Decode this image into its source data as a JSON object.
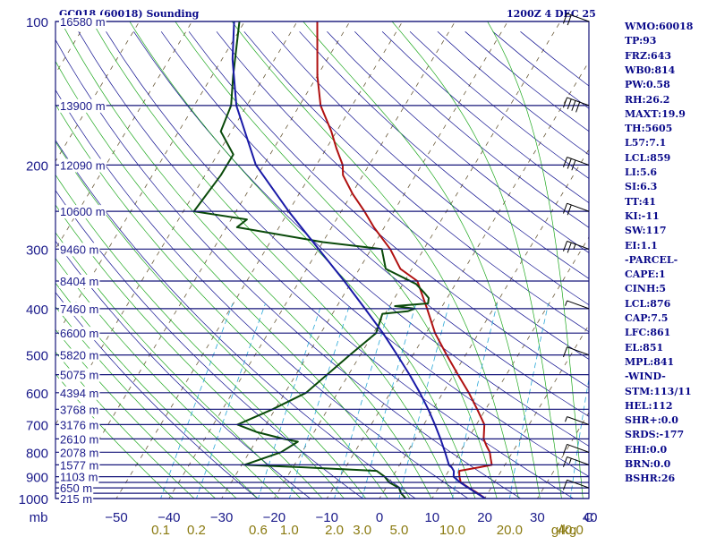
{
  "chart_data": {
    "type": "skew-t sounding",
    "title": "GC018 (60018) Sounding",
    "time_label": "1200Z  4 DEC 25",
    "pressure_axis_unit": "mb",
    "mixing_ratio_unit": "g/kg",
    "pressure_levels": [
      100,
      150,
      200,
      250,
      300,
      350,
      400,
      450,
      500,
      550,
      600,
      650,
      700,
      750,
      800,
      850,
      900,
      925,
      950,
      975,
      1000
    ],
    "pressure_tick_labels": [
      100,
      200,
      300,
      400,
      500,
      600,
      700,
      800,
      900,
      1000
    ],
    "height_labels": [
      {
        "p": 100,
        "label": "16580 m"
      },
      {
        "p": 150,
        "label": "13900 m"
      },
      {
        "p": 200,
        "label": "12090 m"
      },
      {
        "p": 250,
        "label": "10600 m"
      },
      {
        "p": 300,
        "label": "9460 m"
      },
      {
        "p": 350,
        "label": "8404 m"
      },
      {
        "p": 400,
        "label": "7460 m"
      },
      {
        "p": 450,
        "label": "6600 m"
      },
      {
        "p": 500,
        "label": "5820 m"
      },
      {
        "p": 550,
        "label": "5075 m"
      },
      {
        "p": 600,
        "label": "4394 m"
      },
      {
        "p": 650,
        "label": "3768 m"
      },
      {
        "p": 700,
        "label": "3176 m"
      },
      {
        "p": 750,
        "label": "2610 m"
      },
      {
        "p": 800,
        "label": "2078 m"
      },
      {
        "p": 850,
        "label": "1577 m"
      },
      {
        "p": 900,
        "label": "1103 m"
      },
      {
        "p": 950,
        "label": "650 m"
      },
      {
        "p": 1000,
        "label": "215 m"
      }
    ],
    "temperature_ticks": [
      -50,
      -40,
      -30,
      -20,
      -10,
      0,
      10,
      20,
      30,
      40
    ],
    "temperature_tick_labels": [
      "−50",
      "−40",
      "−30",
      "−20",
      "−10",
      "0",
      "10",
      "20",
      "30",
      "40"
    ],
    "mixing_ratio_ticks": [
      0.1,
      0.2,
      0.6,
      1.0,
      2.0,
      3.0,
      5.0,
      10.0,
      20.0,
      40.0
    ],
    "mixing_ratio_tick_labels": [
      "0.1",
      "0.2",
      "0.6",
      "1.0",
      "2.0",
      "3.0",
      "5.0",
      "10.0",
      "20.0",
      "40.0"
    ],
    "series": [
      {
        "role": "temperature",
        "color": "#b01010",
        "points": [
          [
            1000,
            20.1
          ],
          [
            975,
            18.1
          ],
          [
            950,
            15.8
          ],
          [
            925,
            13.6
          ],
          [
            900,
            12.7
          ],
          [
            875,
            12.0
          ],
          [
            860,
            15.4
          ],
          [
            850,
            17.5
          ],
          [
            825,
            16.6
          ],
          [
            800,
            15.7
          ],
          [
            775,
            14.3
          ],
          [
            750,
            13.0
          ],
          [
            700,
            11.5
          ],
          [
            650,
            8.4
          ],
          [
            600,
            4.9
          ],
          [
            550,
            0.8
          ],
          [
            500,
            -3.6
          ],
          [
            450,
            -8.3
          ],
          [
            400,
            -12.6
          ],
          [
            350,
            -17.6
          ],
          [
            330,
            -22.2
          ],
          [
            300,
            -26.4
          ],
          [
            270,
            -32.0
          ],
          [
            250,
            -35.6
          ],
          [
            230,
            -39.8
          ],
          [
            210,
            -43.8
          ],
          [
            200,
            -45.0
          ],
          [
            185,
            -48.0
          ],
          [
            170,
            -51.0
          ],
          [
            150,
            -56.0
          ],
          [
            130,
            -60.0
          ],
          [
            100,
            -66.2
          ]
        ]
      },
      {
        "role": "dewpoint",
        "color": "#0a4a0a",
        "points": [
          [
            1000,
            5.0
          ],
          [
            975,
            3.5
          ],
          [
            950,
            2.5
          ],
          [
            925,
            0.0
          ],
          [
            900,
            -1.5
          ],
          [
            875,
            -3.7
          ],
          [
            860,
            -18.0
          ],
          [
            850,
            -29.5
          ],
          [
            800,
            -24.0
          ],
          [
            760,
            -22.0
          ],
          [
            750,
            -25.0
          ],
          [
            725,
            -31.0
          ],
          [
            700,
            -35.4
          ],
          [
            650,
            -30.5
          ],
          [
            600,
            -26.0
          ],
          [
            500,
            -22.0
          ],
          [
            450,
            -19.5
          ],
          [
            410,
            -20.5
          ],
          [
            405,
            -16.0
          ],
          [
            400,
            -15.0
          ],
          [
            395,
            -19.0
          ],
          [
            390,
            -13.0
          ],
          [
            380,
            -13.5
          ],
          [
            370,
            -15.0
          ],
          [
            355,
            -17.5
          ],
          [
            330,
            -25.0
          ],
          [
            300,
            -28.0
          ],
          [
            290,
            -40.0
          ],
          [
            270,
            -58.0
          ],
          [
            260,
            -57.0
          ],
          [
            250,
            -68.0
          ],
          [
            210,
            -67.0
          ],
          [
            190,
            -67.0
          ],
          [
            170,
            -72.0
          ],
          [
            150,
            -73.0
          ],
          [
            130,
            -76.0
          ],
          [
            100,
            -81.0
          ]
        ]
      },
      {
        "role": "parcel",
        "color": "#1a1aa8",
        "points": [
          [
            1000,
            20.1
          ],
          [
            975,
            17.9
          ],
          [
            950,
            15.7
          ],
          [
            925,
            13.5
          ],
          [
            900,
            11.6
          ],
          [
            876,
            11.0
          ],
          [
            861,
            10.2
          ],
          [
            851,
            9.4
          ],
          [
            800,
            7.2
          ],
          [
            750,
            4.8
          ],
          [
            700,
            2.1
          ],
          [
            650,
            -0.9
          ],
          [
            600,
            -4.4
          ],
          [
            550,
            -8.4
          ],
          [
            500,
            -13.0
          ],
          [
            450,
            -18.2
          ],
          [
            400,
            -24.4
          ],
          [
            350,
            -31.5
          ],
          [
            300,
            -40.0
          ],
          [
            250,
            -50.0
          ],
          [
            200,
            -61.5
          ],
          [
            150,
            -72.0
          ],
          [
            120,
            -78.0
          ],
          [
            100,
            -82.0
          ]
        ]
      }
    ],
    "wind_barbs": [
      {
        "p": 100,
        "speed_kt": 20
      },
      {
        "p": 150,
        "speed_kt": 40
      },
      {
        "p": 200,
        "speed_kt": 30
      },
      {
        "p": 250,
        "speed_kt": 20
      },
      {
        "p": 300,
        "speed_kt": 25
      },
      {
        "p": 400,
        "speed_kt": 5
      },
      {
        "p": 500,
        "speed_kt": 10
      },
      {
        "p": 700,
        "speed_kt": 5
      },
      {
        "p": 800,
        "speed_kt": 10
      },
      {
        "p": 850,
        "speed_kt": 15
      },
      {
        "p": 950,
        "speed_kt": 10
      }
    ],
    "colors": {
      "isobar": "#16167a",
      "dry_adiabat": "#101090",
      "moist_adiabat": "#1fa81f",
      "mixing_ratio": "#2aa8d8",
      "isotherm": "#6a5a3a",
      "label_blue": "#1a1a8a",
      "label_olive": "#8a7a10"
    }
  },
  "indices": [
    "WMO:60018",
    "TP:93",
    "FRZ:643",
    "WB0:814",
    "PW:0.58",
    "RH:26.2",
    "MAXT:19.9",
    "TH:5605",
    "L57:7.1",
    "LCL:859",
    "LI:5.6",
    "SI:6.3",
    "TT:41",
    "KI:-11",
    "SW:117",
    "EI:1.1",
    "-PARCEL-",
    "CAPE:1",
    "CINH:5",
    "LCL:876",
    "CAP:7.5",
    "LFC:861",
    "EL:851",
    "MPL:841",
    "-WIND-",
    "STM:113/11",
    "HEL:112",
    "SHR+:0.0",
    "SRDS:-177",
    "EHI:0.0",
    "BRN:0.0",
    "BSHR:26"
  ]
}
